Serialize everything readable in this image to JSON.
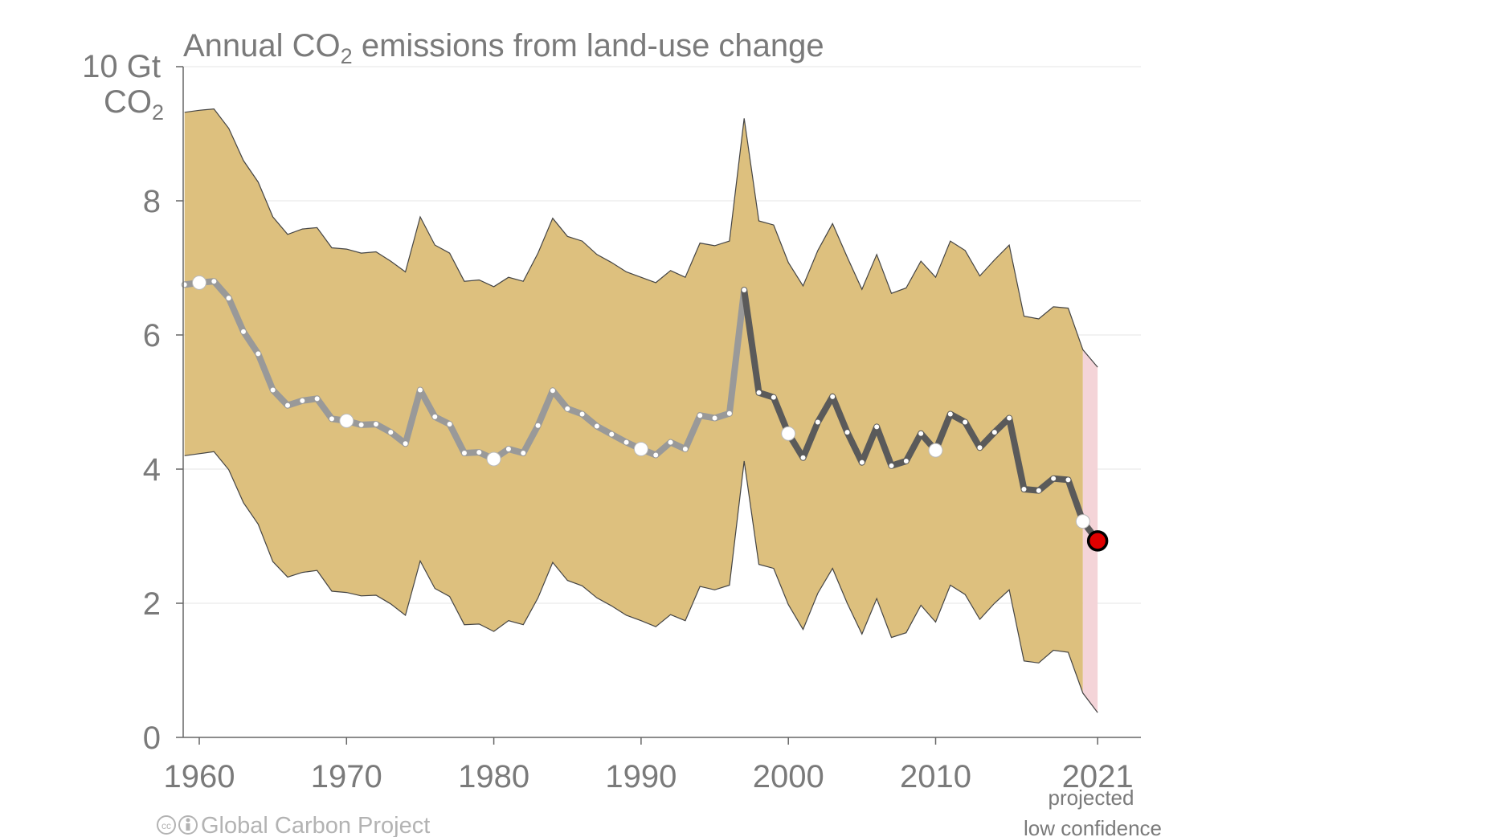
{
  "chart_data": {
    "type": "line",
    "title_main": "Annual CO",
    "title_sub": "2",
    "title_rest": " emissions from land-use change",
    "ylabel_line1": "10 Gt",
    "ylabel_line2_main": "CO",
    "ylabel_line2_sub": "2",
    "ylim": [
      0,
      10
    ],
    "xlim": [
      1959,
      2023
    ],
    "yticks": [
      "0",
      "2",
      "4",
      "6",
      "8"
    ],
    "ytick_values": [
      0,
      2,
      4,
      6,
      8
    ],
    "grid_values": [
      2,
      4,
      6,
      8,
      10
    ],
    "xticks": [
      "1960",
      "1970",
      "1980",
      "1990",
      "2000",
      "2010",
      "2021"
    ],
    "xtick_values": [
      1960,
      1970,
      1980,
      1990,
      2000,
      2010,
      2021
    ],
    "x": [
      1959,
      1960,
      1961,
      1962,
      1963,
      1964,
      1965,
      1966,
      1967,
      1968,
      1969,
      1970,
      1971,
      1972,
      1973,
      1974,
      1975,
      1976,
      1977,
      1978,
      1979,
      1980,
      1981,
      1982,
      1983,
      1984,
      1985,
      1986,
      1987,
      1988,
      1989,
      1990,
      1991,
      1992,
      1993,
      1994,
      1995,
      1996,
      1997,
      1998,
      1999,
      2000,
      2001,
      2002,
      2003,
      2004,
      2005,
      2006,
      2007,
      2008,
      2009,
      2010,
      2011,
      2012,
      2013,
      2014,
      2015,
      2016,
      2017,
      2018,
      2019,
      2020
    ],
    "series": [
      {
        "values": [
          6.75,
          6.78,
          6.8,
          6.55,
          6.05,
          5.72,
          5.18,
          4.95,
          5.02,
          5.05,
          4.75,
          4.72,
          4.66,
          4.67,
          4.55,
          4.38,
          5.18,
          4.78,
          4.67,
          4.24,
          4.25,
          4.15,
          4.3,
          4.24,
          4.65,
          5.17,
          4.9,
          4.82,
          4.64,
          4.52,
          4.4,
          4.3,
          4.21,
          4.4,
          4.3,
          4.8,
          4.76,
          4.83,
          6.67,
          5.14,
          5.07,
          4.53,
          4.17,
          4.7,
          5.08,
          4.55,
          4.1,
          4.63,
          4.05,
          4.12,
          4.53,
          4.28,
          4.82,
          4.7,
          4.32,
          4.55,
          4.76,
          3.7,
          3.68,
          3.86,
          3.84,
          3.22
        ]
      }
    ],
    "upper": [
      9.32,
      9.35,
      9.37,
      9.08,
      8.6,
      8.28,
      7.76,
      7.5,
      7.58,
      7.6,
      7.3,
      7.28,
      7.22,
      7.24,
      7.1,
      6.94,
      7.76,
      7.34,
      7.22,
      6.8,
      6.82,
      6.72,
      6.86,
      6.8,
      7.22,
      7.74,
      7.47,
      7.4,
      7.2,
      7.08,
      6.94,
      6.86,
      6.78,
      6.96,
      6.86,
      7.37,
      7.33,
      7.4,
      9.23,
      7.7,
      7.64,
      7.08,
      6.73,
      7.26,
      7.66,
      7.16,
      6.68,
      7.2,
      6.62,
      6.7,
      7.1,
      6.86,
      7.4,
      7.26,
      6.88,
      7.12,
      7.34,
      6.28,
      6.24,
      6.42,
      6.4,
      5.78
    ],
    "lower": [
      4.2,
      4.23,
      4.26,
      3.99,
      3.5,
      3.18,
      2.62,
      2.39,
      2.46,
      2.49,
      2.18,
      2.16,
      2.11,
      2.12,
      1.99,
      1.82,
      2.63,
      2.22,
      2.1,
      1.68,
      1.69,
      1.58,
      1.74,
      1.68,
      2.08,
      2.61,
      2.34,
      2.26,
      2.08,
      1.96,
      1.82,
      1.74,
      1.65,
      1.83,
      1.74,
      2.25,
      2.2,
      2.27,
      4.12,
      2.58,
      2.52,
      1.98,
      1.61,
      2.15,
      2.52,
      2.0,
      1.54,
      2.07,
      1.49,
      1.56,
      1.97,
      1.72,
      2.27,
      2.13,
      1.76,
      2.0,
      2.2,
      1.14,
      1.11,
      1.3,
      1.27,
      0.66
    ],
    "projection": {
      "x": 2021,
      "value": 2.93,
      "upper": 5.52,
      "lower": 0.37
    },
    "highlight_years": [
      1960,
      1970,
      1980,
      1990,
      2000,
      2010,
      2020
    ],
    "dark_from_year": 1997,
    "projected_label": "projected",
    "confidence_label": "low confidence",
    "credit": "Global Carbon Project",
    "colors": {
      "band": "#ddc07e",
      "band_edge": "#444444",
      "projection_band": "#f4d4d8",
      "line_early": "#999999",
      "line_late": "#5a5a5a",
      "marker_small": "#ffffff",
      "projection_marker": "#e00000",
      "axis": "#666666",
      "grid": "#e6e6e6",
      "text": "#7a7a7a"
    }
  }
}
